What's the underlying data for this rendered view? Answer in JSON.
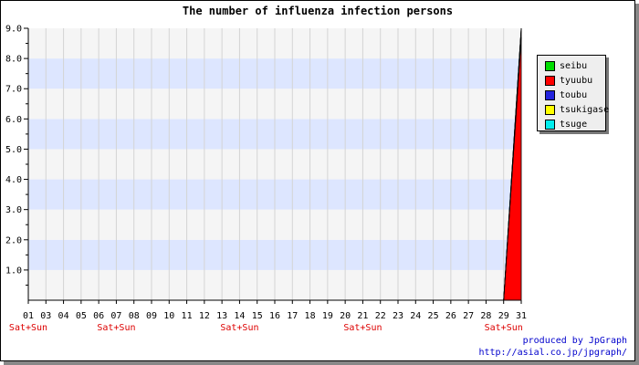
{
  "chart_data": {
    "type": "area",
    "title": "The number of influenza infection persons",
    "xlabel": "",
    "ylabel": "",
    "categories": [
      "01",
      "03",
      "04",
      "05",
      "06",
      "07",
      "08",
      "09",
      "10",
      "11",
      "12",
      "13",
      "14",
      "15",
      "16",
      "17",
      "18",
      "19",
      "20",
      "21",
      "22",
      "23",
      "24",
      "25",
      "26",
      "27",
      "28",
      "29",
      "31"
    ],
    "weekend_labels": [
      {
        "category": "01",
        "text": "Sat+Sun"
      },
      {
        "category": "07",
        "text": "Sat+Sun"
      },
      {
        "category": "14",
        "text": "Sat+Sun"
      },
      {
        "category": "21",
        "text": "Sat+Sun"
      },
      {
        "category": "29",
        "text": "Sat+Sun"
      }
    ],
    "ylim": [
      0,
      9.0
    ],
    "yticks": [
      1.0,
      2.0,
      3.0,
      4.0,
      5.0,
      6.0,
      7.0,
      8.0,
      9.0
    ],
    "stacked": true,
    "series": [
      {
        "name": "seibu",
        "color": "#00dd00",
        "values": [
          0,
          0,
          0,
          0,
          0,
          0,
          0,
          0,
          0,
          0,
          0,
          0,
          0,
          0,
          0,
          0,
          0,
          0,
          0,
          0,
          0,
          0,
          0,
          0,
          0,
          0,
          0,
          0,
          0
        ]
      },
      {
        "name": "tyuubu",
        "color": "#ff0000",
        "values": [
          0,
          0,
          0,
          0,
          0,
          0,
          0,
          0,
          0,
          0,
          0,
          0,
          0,
          0,
          0,
          0,
          0,
          0,
          0,
          0,
          0,
          0,
          0,
          0,
          0,
          0,
          0,
          0,
          8.7
        ]
      },
      {
        "name": "toubu",
        "color": "#2222dd",
        "values": [
          0,
          0,
          0,
          0,
          0,
          0,
          0,
          0,
          0,
          0,
          0,
          0,
          0,
          0,
          0,
          0,
          0,
          0,
          0,
          0,
          0,
          0,
          0,
          0,
          0,
          0,
          0,
          0,
          0.3
        ]
      },
      {
        "name": "tsukigase",
        "color": "#ffff00",
        "values": [
          0,
          0,
          0,
          0,
          0,
          0,
          0,
          0,
          0,
          0,
          0,
          0,
          0,
          0,
          0,
          0,
          0,
          0,
          0,
          0,
          0,
          0,
          0,
          0,
          0,
          0,
          0,
          0,
          0
        ]
      },
      {
        "name": "tsuge",
        "color": "#00eeee",
        "values": [
          0,
          0,
          0,
          0,
          0,
          0,
          0,
          0,
          0,
          0,
          0,
          0,
          0,
          0,
          0,
          0,
          0,
          0,
          0,
          0,
          0,
          0,
          0,
          0,
          0,
          0,
          0,
          0,
          0
        ]
      }
    ],
    "grid": true,
    "band_colors": [
      "#f5f5f5",
      "#dde6ff"
    ],
    "weekend_label_color": "#dd0000",
    "legend_position": "right"
  },
  "credit": {
    "line1": "produced by JpGraph",
    "line2": "http://asial.co.jp/jpgraph/"
  }
}
